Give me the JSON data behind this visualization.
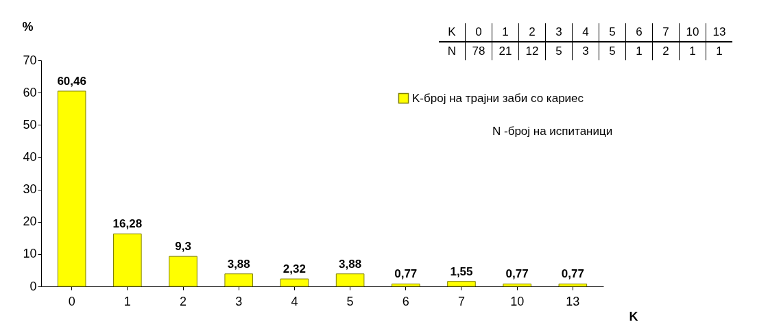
{
  "chart_data": {
    "type": "bar",
    "ylabel": "%",
    "xlabel": "K",
    "categories": [
      "0",
      "1",
      "2",
      "3",
      "4",
      "5",
      "6",
      "7",
      "10",
      "13"
    ],
    "series": [
      {
        "name": "K-број на трајни заби со кариес",
        "color": "#ffff00",
        "values": [
          60.46,
          16.28,
          9.3,
          3.88,
          2.32,
          3.88,
          0.77,
          1.55,
          0.77,
          0.77
        ],
        "value_labels": [
          "60,46",
          "16,28",
          "9,3",
          "3,88",
          "2,32",
          "3,88",
          "0,77",
          "1,55",
          "0,77",
          "0,77"
        ]
      }
    ],
    "ylim": [
      0,
      70
    ],
    "yticks": [
      0,
      10,
      20,
      30,
      40,
      50,
      60,
      70
    ],
    "grid": false,
    "legend": "top right",
    "annotations": [
      "N -број на испитаници",
      "K 0 1 2 3 4 5 6 7 10 13",
      "N 78 21 12 5 3 5 1 2 1 1"
    ]
  }
}
